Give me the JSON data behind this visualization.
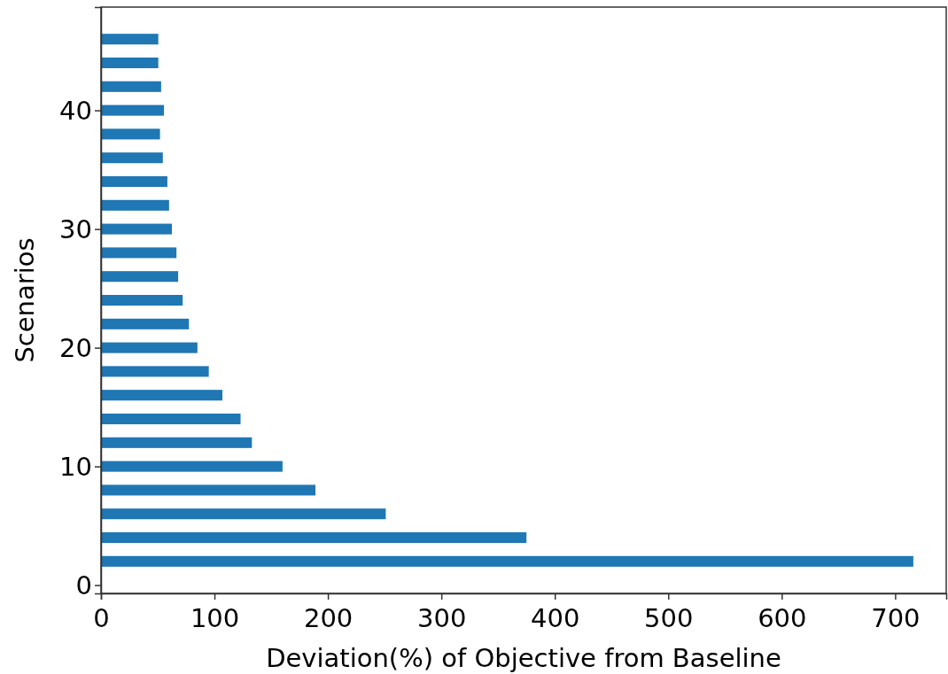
{
  "chart_data": {
    "type": "bar",
    "orientation": "horizontal",
    "xlabel": "Deviation(%) of Objective from Baseline",
    "ylabel": "Scenarios",
    "x": [
      2,
      4,
      6,
      8,
      10,
      12,
      14,
      16,
      18,
      20,
      22,
      24,
      26,
      28,
      30,
      32,
      34,
      36,
      38,
      40,
      42,
      44,
      46
    ],
    "values": [
      716,
      375,
      251,
      189,
      160,
      133,
      123,
      107,
      95,
      85,
      77.5,
      72,
      68,
      66.5,
      62.5,
      60,
      58.5,
      54.5,
      52,
      55.5,
      53,
      50.5,
      50.5
    ],
    "color": "#1f77b4",
    "xlim": [
      0,
      745
    ],
    "xticks": [
      0,
      100,
      200,
      300,
      400,
      500,
      600,
      700
    ],
    "ylim": [
      -0.7,
      48.7
    ],
    "yticks": [
      0,
      10,
      20,
      30,
      40
    ],
    "grid": false
  }
}
